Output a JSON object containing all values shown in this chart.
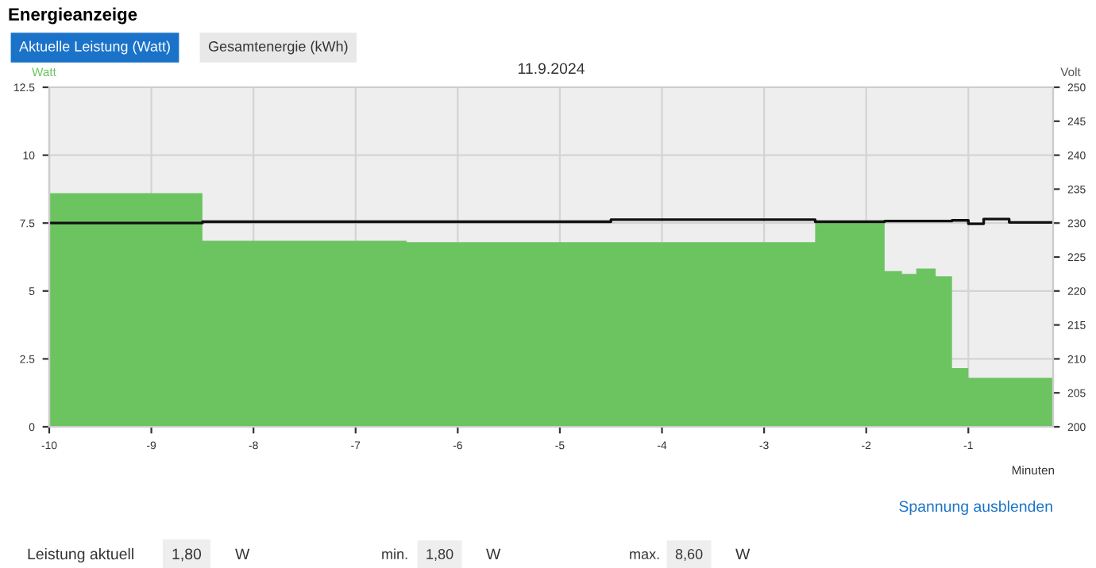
{
  "chart_data": {
    "type": "step",
    "title": "Energieanzeige",
    "subtitle": "11.9.2024",
    "ylabel": "Watt",
    "y2label": "Volt",
    "xlabel": "Minuten",
    "series": [
      {
        "type": "area",
        "color": "#6cc461",
        "x": [
          -10,
          -8.5,
          -6.5,
          -2.5,
          -1.82,
          -1.65,
          -1.51,
          -1.32,
          -1.16,
          -1.0,
          -0.17
        ],
        "values": [
          8.6,
          6.85,
          6.8,
          7.5,
          5.73,
          5.63,
          5.83,
          5.54,
          2.16,
          1.8,
          1.8
        ]
      },
      {
        "type": "step",
        "axis": "y2",
        "color": "#111111",
        "x": [
          -10,
          -8.5,
          -4.5,
          -2.5,
          -1.82,
          -1.16,
          -1.0,
          -0.85,
          -0.6,
          -0.17
        ],
        "values": [
          230.0,
          230.2,
          230.5,
          230.2,
          230.3,
          230.4,
          229.9,
          230.6,
          230.1,
          230.1
        ]
      }
    ],
    "xlim": [
      -10,
      -0.17
    ],
    "xticks": [
      -10,
      -9,
      -8,
      -7,
      -6,
      -5,
      -4,
      -3,
      -2,
      -1
    ],
    "ylim": [
      0,
      12.5
    ],
    "yticks": [
      0,
      2.5,
      5,
      7.5,
      10,
      12.5
    ],
    "y2lim": [
      200,
      250
    ],
    "y2ticks": [
      200,
      205,
      210,
      215,
      220,
      225,
      230,
      235,
      240,
      245,
      250
    ],
    "grid": true,
    "legend": false,
    "annotations": [
      "Aktuelle Leistung (Watt)",
      "Gesamtenergie (kWh)",
      "Spannung ausblenden",
      "Leistung aktuell",
      "1,80",
      "W",
      "min.",
      "1,80",
      "W",
      "max.",
      "8,60",
      "W"
    ]
  }
}
